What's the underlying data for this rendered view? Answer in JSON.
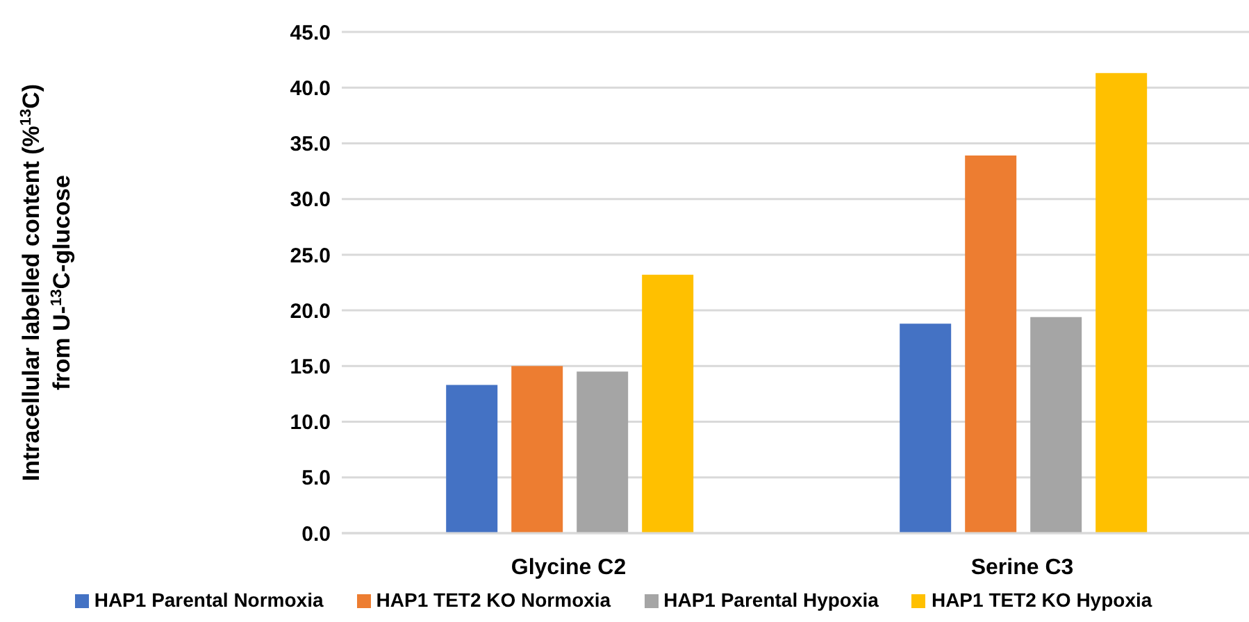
{
  "chart_data": {
    "type": "bar",
    "ylabel": "Intracellular labelled content (%$^{13}$C)\nfrom U-$^{13}$C-glucose",
    "categories": [
      "Glycine C2",
      "Serine C3"
    ],
    "series": [
      {
        "name": "HAP1 Parental Normoxia",
        "color": "#4472c4",
        "values": [
          13.3,
          18.8
        ]
      },
      {
        "name": "HAP1 TET2 KO Normoxia",
        "color": "#ed7d31",
        "values": [
          15.0,
          33.9
        ]
      },
      {
        "name": "HAP1 Parental Hypoxia",
        "color": "#a5a5a5",
        "values": [
          14.5,
          19.4
        ]
      },
      {
        "name": "HAP1 TET2 KO Hypoxia",
        "color": "#ffc000",
        "values": [
          23.2,
          41.3
        ]
      }
    ],
    "ylim": [
      0,
      45
    ],
    "yticks": [
      {
        "value": 0,
        "label": "0.0"
      },
      {
        "value": 5,
        "label": "5.0"
      },
      {
        "value": 10,
        "label": "10.0"
      },
      {
        "value": 15,
        "label": "15.0"
      },
      {
        "value": 20,
        "label": "20.0"
      },
      {
        "value": 25,
        "label": "25.0"
      },
      {
        "value": 30,
        "label": "30.0"
      },
      {
        "value": 35,
        "label": "35.0"
      },
      {
        "value": 40,
        "label": "40.0"
      },
      {
        "value": 45,
        "label": "45.0"
      }
    ],
    "grid": "y",
    "legend": "bottom"
  }
}
